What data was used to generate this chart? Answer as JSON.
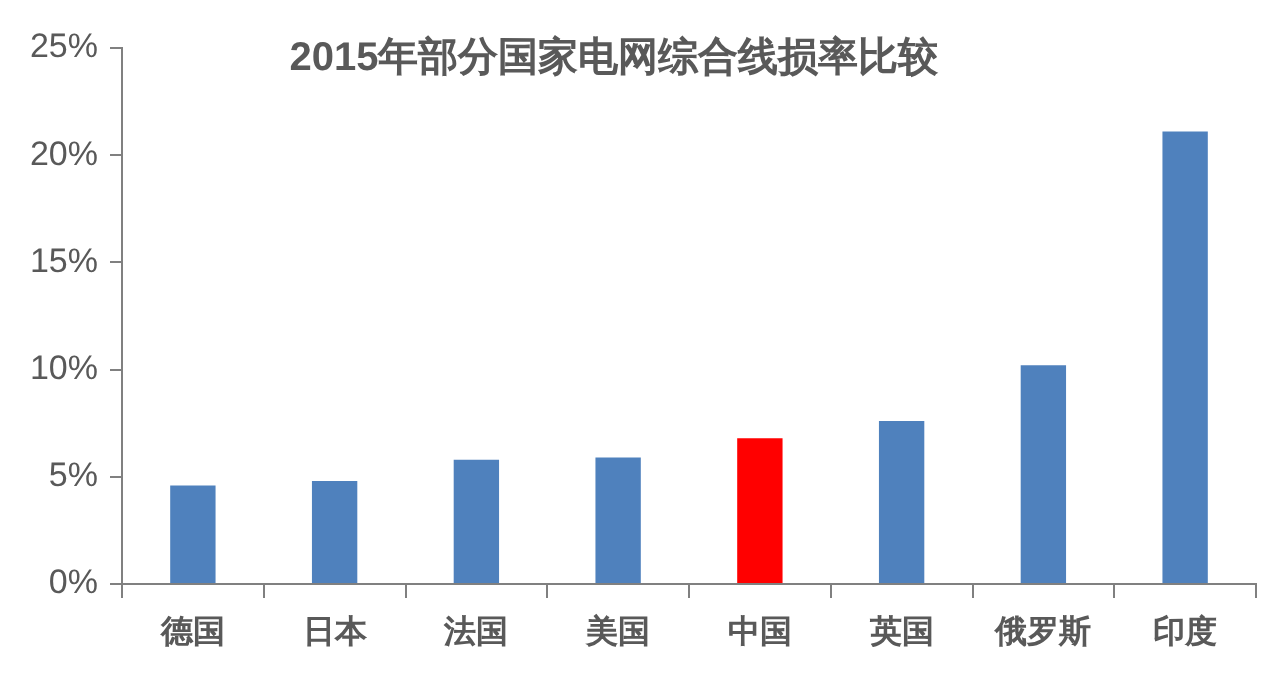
{
  "chart_data": {
    "type": "bar",
    "title": "2015年部分国家电网综合线损率比较",
    "categories": [
      "德国",
      "日本",
      "法国",
      "美国",
      "中国",
      "英国",
      "俄罗斯",
      "印度"
    ],
    "values": [
      4.6,
      4.8,
      5.8,
      5.9,
      6.8,
      7.6,
      10.2,
      21.1
    ],
    "colors": [
      "#4f81bd",
      "#4f81bd",
      "#4f81bd",
      "#4f81bd",
      "#ff0000",
      "#4f81bd",
      "#4f81bd",
      "#4f81bd"
    ],
    "ylim": [
      0,
      25
    ],
    "yticks": [
      {
        "value": 0,
        "label": "0%"
      },
      {
        "value": 5,
        "label": "5%"
      },
      {
        "value": 10,
        "label": "10%"
      },
      {
        "value": 15,
        "label": "15%"
      },
      {
        "value": 20,
        "label": "20%"
      },
      {
        "value": 25,
        "label": "25%"
      }
    ]
  }
}
